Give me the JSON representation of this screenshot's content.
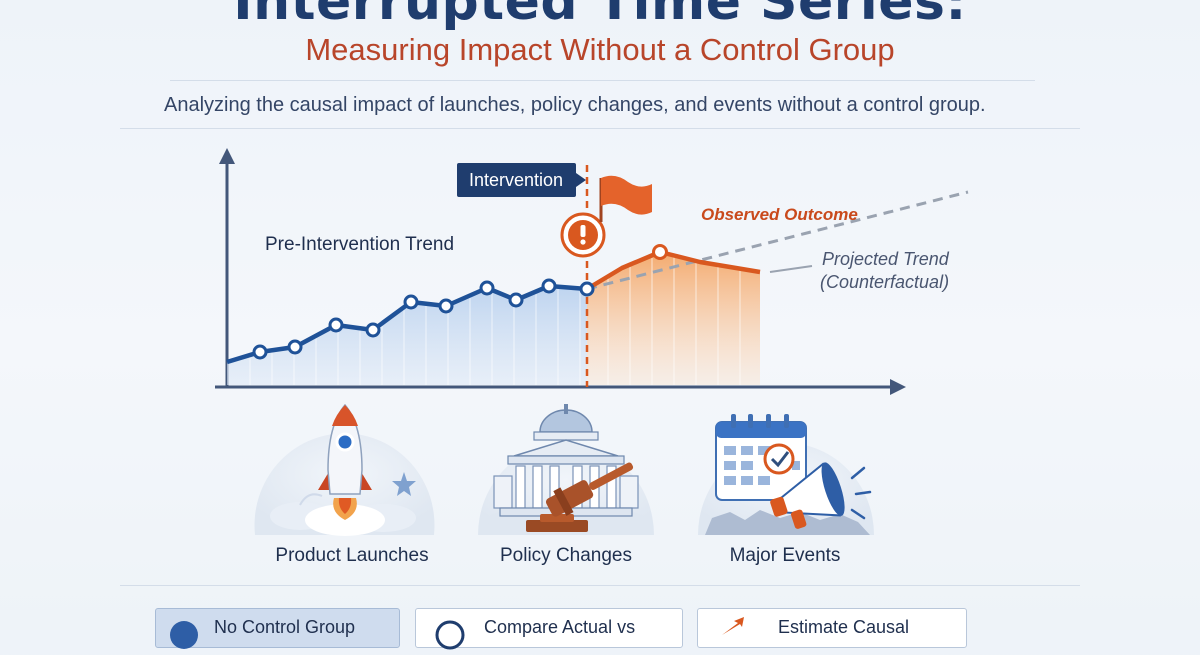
{
  "header": {
    "title": "Interrupted Time Series:",
    "subtitle": "Measuring Impact Without a Control Group",
    "description": "Analyzing the causal impact of launches, policy changes, and events without a control group."
  },
  "chart": {
    "pre_label": "Pre-Intervention Trend",
    "intervention_label": "Intervention",
    "observed_label": "Observed Outcome",
    "projected_label_1": "Projected Trend",
    "projected_label_2": "(Counterfactual)"
  },
  "cards": [
    {
      "label": "Product Launches",
      "icon": "rocket-icon"
    },
    {
      "label": "Policy Changes",
      "icon": "courthouse-gavel-icon"
    },
    {
      "label": "Major Events",
      "icon": "calendar-megaphone-icon"
    }
  ],
  "bottom": [
    {
      "label": "No Control Group"
    },
    {
      "label": "Compare Actual vs"
    },
    {
      "label": "Estimate Causal"
    }
  ],
  "colors": {
    "navy": "#1f3d6e",
    "accent_orange": "#d9581f",
    "pre_fill": "#c9dbf1",
    "post_fill": "#f6b27c"
  }
}
